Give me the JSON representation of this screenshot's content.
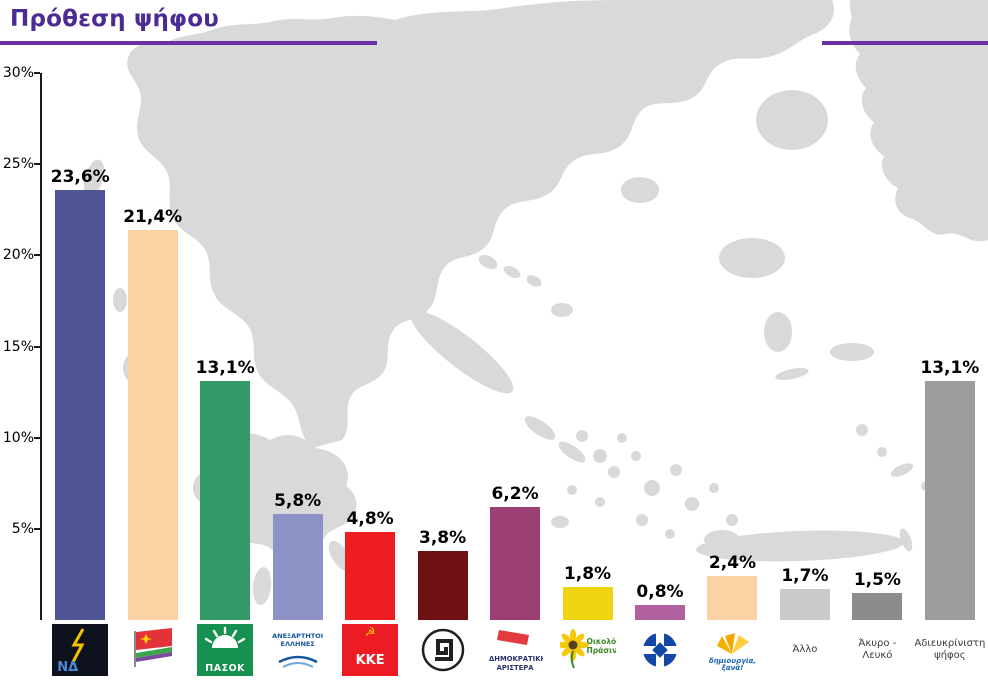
{
  "title": {
    "text": "Πρόθεση ψήφου"
  },
  "colors": {
    "title": "#4c2c92",
    "rule": "#6b30a1",
    "map": "#d9d9d9",
    "axis": "#1a1a1a",
    "value_label": "#000000",
    "x_text_label": "#3a3a3a"
  },
  "icons": {
    "hammer_sickle": "☭"
  },
  "chart_data": {
    "type": "bar",
    "title": "Πρόθεση ψήφου",
    "xlabel": "",
    "ylabel": "",
    "ylim": [
      0,
      30
    ],
    "grid": false,
    "legend": "none",
    "background": "light-gray silhouette map of Greece behind the bars",
    "ytick_labels": [
      "30%",
      "25%",
      "20%",
      "15%",
      "10%",
      "5%"
    ],
    "ytick_values": [
      30,
      25,
      20,
      15,
      10,
      5
    ],
    "categories": [
      "ΝΔ",
      "ΣΥΡΙΖΑ",
      "ΠΑΣΟΚ",
      "ΑΝΕΞΑΡΤΗΤΟΙ ΕΛΛΗΝΕΣ",
      "ΚΚΕ",
      "ΧΡΥΣΗ ΑΥΓΗ",
      "ΔΗΜΟΚΡΑΤΙΚΗ ΑΡΙΣΤΕΡΑ",
      "ΟΙΚΟΛΟΓΟΙ ΠΡΑΣΙΝΟΙ",
      "ΛΑΟΣ",
      "ΔΗΜΙΟΥΡΓΙΑ ΞΑΝΑ",
      "Άλλο",
      "Άκυρο - Λευκό",
      "Αδιευκρίνιστη ψήφος"
    ],
    "values": [
      23.6,
      21.4,
      13.1,
      5.8,
      4.8,
      3.8,
      6.2,
      1.8,
      0.8,
      2.4,
      1.7,
      1.5,
      13.1
    ],
    "value_labels": [
      "23,6%",
      "21,4%",
      "13,1%",
      "5,8%",
      "4,8%",
      "3,8%",
      "6,2%",
      "1,8%",
      "0,8%",
      "2,4%",
      "1,7%",
      "1,5%",
      "13,1%"
    ],
    "bar_colors": [
      "#4f5492",
      "#fad2a4",
      "#339966",
      "#8d92c6",
      "#ee1c23",
      "#6f1113",
      "#9c3f72",
      "#efd511",
      "#b0619e",
      "#fad2a4",
      "#c9c9c9",
      "#8c8c8c",
      "#9d9d9d"
    ]
  },
  "x_axis": {
    "items": [
      {
        "kind": "logo",
        "name": "nd-logo",
        "text": "ΝΔ"
      },
      {
        "kind": "logo",
        "name": "syriza-logo",
        "text": ""
      },
      {
        "kind": "logo",
        "name": "pasok-logo",
        "text": "ΠΑΣΟΚ"
      },
      {
        "kind": "logo",
        "name": "anexartitoi-ellines-logo",
        "text": "ΑΝΕΞΑΡΤΗΤΟΙ ΕΛΛΗΝΕΣ"
      },
      {
        "kind": "logo",
        "name": "kke-logo",
        "text": "ΚΚΕ"
      },
      {
        "kind": "logo",
        "name": "chrysi-avgi-logo",
        "text": ""
      },
      {
        "kind": "logo",
        "name": "dimokratiki-aristera-logo",
        "text": "ΔΗΜΟΚΡΑΤΙΚΗ ΑΡΙΣΤΕΡΑ"
      },
      {
        "kind": "logo",
        "name": "oikologoi-prasinoi-logo",
        "text": "Οικολόγοι Πράσινοι"
      },
      {
        "kind": "logo",
        "name": "laos-logo",
        "text": ""
      },
      {
        "kind": "logo",
        "name": "dimiourgia-xana-logo",
        "text": "δημιουργία, ξανά!"
      },
      {
        "kind": "text",
        "name": "x-label-other",
        "text": "Άλλο"
      },
      {
        "kind": "text",
        "name": "x-label-invalid-blank",
        "text": "Άκυρο - Λευκό"
      },
      {
        "kind": "text",
        "name": "x-label-undecided",
        "text": "Αδιευκρίνιστη ψήφος"
      }
    ]
  }
}
